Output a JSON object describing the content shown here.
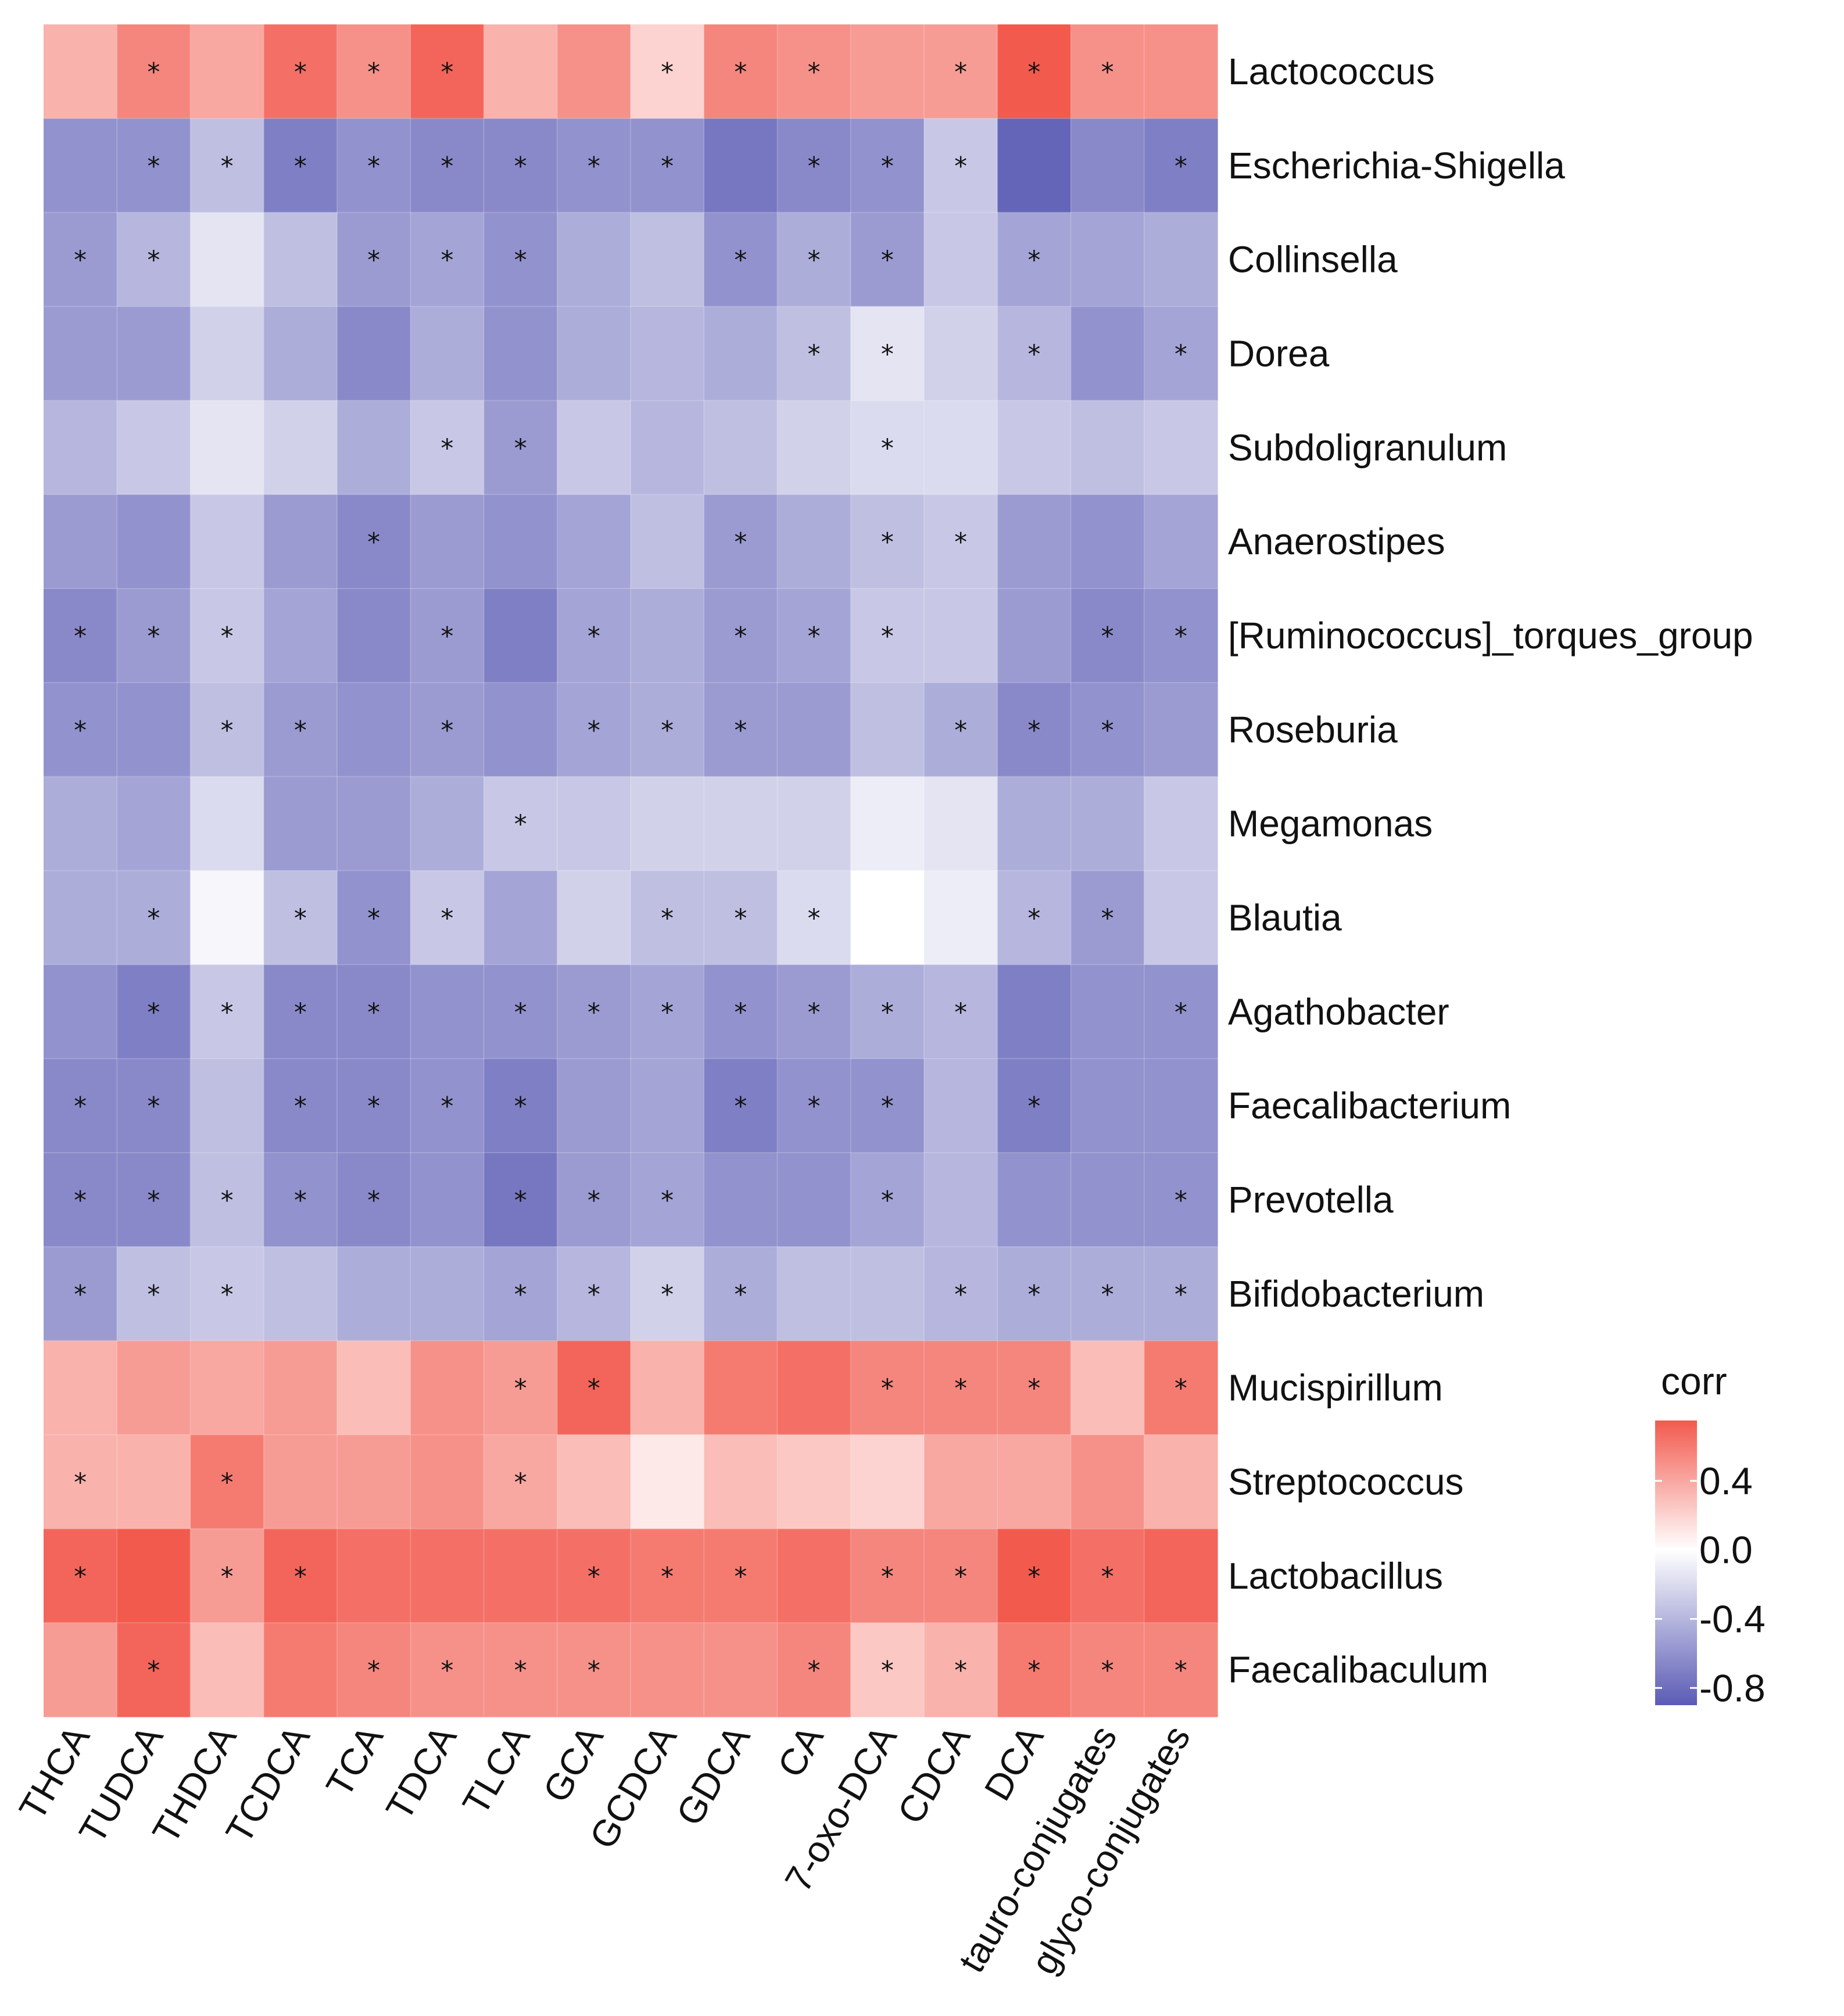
{
  "chart_data": {
    "type": "heatmap",
    "title": "",
    "xlabel": "",
    "ylabel": "",
    "columns": [
      "THCA",
      "TUDCA",
      "THDCA",
      "TCDCA",
      "TCA",
      "TDCA",
      "TLCA",
      "GCA",
      "GCDCA",
      "GDCA",
      "CA",
      "7-oxo-DCA",
      "CDCA",
      "DCA",
      "tauro-conjugates",
      "glyco-conjugates"
    ],
    "rows": [
      "Lactococcus",
      "Escherichia-Shigella",
      "Collinsella",
      "Dorea",
      "Subdoligranulum",
      "Anaerostipes",
      "[Ruminococcus]_torques_group",
      "Roseburia",
      "Megamonas",
      "Blautia",
      "Agathobacter",
      "Faecalibacterium",
      "Prevotella",
      "Bifidobacterium",
      "Mucispirillum",
      "Streptococcus",
      "Lactobacillus",
      "Faecalibaculum"
    ],
    "values": [
      [
        0.35,
        0.55,
        0.4,
        0.65,
        0.5,
        0.7,
        0.35,
        0.5,
        0.2,
        0.55,
        0.5,
        0.45,
        0.45,
        0.75,
        0.5,
        0.5
      ],
      [
        -0.6,
        -0.6,
        -0.35,
        -0.7,
        -0.6,
        -0.65,
        -0.65,
        -0.6,
        -0.6,
        -0.75,
        -0.65,
        -0.6,
        -0.3,
        -0.85,
        -0.65,
        -0.7
      ],
      [
        -0.55,
        -0.4,
        -0.15,
        -0.35,
        -0.55,
        -0.5,
        -0.6,
        -0.45,
        -0.35,
        -0.6,
        -0.45,
        -0.55,
        -0.3,
        -0.5,
        -0.5,
        -0.45
      ],
      [
        -0.55,
        -0.55,
        -0.25,
        -0.45,
        -0.65,
        -0.45,
        -0.6,
        -0.45,
        -0.4,
        -0.45,
        -0.35,
        -0.15,
        -0.25,
        -0.4,
        -0.6,
        -0.5
      ],
      [
        -0.4,
        -0.3,
        -0.15,
        -0.25,
        -0.45,
        -0.3,
        -0.55,
        -0.3,
        -0.4,
        -0.35,
        -0.25,
        -0.2,
        -0.2,
        -0.3,
        -0.35,
        -0.3
      ],
      [
        -0.55,
        -0.6,
        -0.3,
        -0.55,
        -0.65,
        -0.55,
        -0.6,
        -0.5,
        -0.35,
        -0.55,
        -0.45,
        -0.35,
        -0.3,
        -0.55,
        -0.6,
        -0.5
      ],
      [
        -0.65,
        -0.55,
        -0.3,
        -0.5,
        -0.65,
        -0.55,
        -0.7,
        -0.5,
        -0.45,
        -0.55,
        -0.5,
        -0.3,
        -0.3,
        -0.55,
        -0.65,
        -0.6
      ],
      [
        -0.6,
        -0.6,
        -0.35,
        -0.55,
        -0.6,
        -0.55,
        -0.6,
        -0.5,
        -0.45,
        -0.55,
        -0.55,
        -0.35,
        -0.45,
        -0.65,
        -0.6,
        -0.55
      ],
      [
        -0.45,
        -0.5,
        -0.2,
        -0.55,
        -0.55,
        -0.45,
        -0.3,
        -0.3,
        -0.25,
        -0.25,
        -0.25,
        -0.1,
        -0.15,
        -0.45,
        -0.45,
        -0.3
      ],
      [
        -0.45,
        -0.45,
        -0.05,
        -0.35,
        -0.6,
        -0.3,
        -0.5,
        -0.25,
        -0.35,
        -0.35,
        -0.2,
        0.0,
        -0.1,
        -0.4,
        -0.55,
        -0.3
      ],
      [
        -0.6,
        -0.7,
        -0.3,
        -0.65,
        -0.65,
        -0.6,
        -0.6,
        -0.55,
        -0.5,
        -0.6,
        -0.55,
        -0.45,
        -0.4,
        -0.7,
        -0.6,
        -0.6
      ],
      [
        -0.65,
        -0.65,
        -0.35,
        -0.65,
        -0.65,
        -0.6,
        -0.7,
        -0.55,
        -0.5,
        -0.7,
        -0.6,
        -0.6,
        -0.4,
        -0.7,
        -0.6,
        -0.6
      ],
      [
        -0.65,
        -0.65,
        -0.35,
        -0.6,
        -0.65,
        -0.6,
        -0.75,
        -0.55,
        -0.5,
        -0.6,
        -0.6,
        -0.5,
        -0.4,
        -0.6,
        -0.6,
        -0.6
      ],
      [
        -0.55,
        -0.35,
        -0.3,
        -0.35,
        -0.45,
        -0.45,
        -0.5,
        -0.4,
        -0.25,
        -0.45,
        -0.35,
        -0.35,
        -0.4,
        -0.45,
        -0.45,
        -0.45
      ],
      [
        0.35,
        0.45,
        0.4,
        0.45,
        0.3,
        0.5,
        0.45,
        0.7,
        0.35,
        0.6,
        0.65,
        0.55,
        0.55,
        0.55,
        0.3,
        0.6
      ],
      [
        0.35,
        0.35,
        0.6,
        0.45,
        0.45,
        0.5,
        0.4,
        0.3,
        0.1,
        0.3,
        0.25,
        0.2,
        0.4,
        0.4,
        0.5,
        0.35
      ],
      [
        0.7,
        0.85,
        0.45,
        0.7,
        0.65,
        0.65,
        0.65,
        0.65,
        0.6,
        0.6,
        0.65,
        0.55,
        0.55,
        0.75,
        0.65,
        0.7
      ],
      [
        0.45,
        0.7,
        0.3,
        0.6,
        0.55,
        0.5,
        0.5,
        0.5,
        0.5,
        0.5,
        0.55,
        0.25,
        0.35,
        0.6,
        0.55,
        0.55
      ]
    ],
    "significant": [
      [
        0,
        1,
        0,
        1,
        1,
        1,
        0,
        0,
        1,
        1,
        1,
        0,
        1,
        1,
        1,
        0
      ],
      [
        0,
        1,
        1,
        1,
        1,
        1,
        1,
        1,
        1,
        0,
        1,
        1,
        1,
        0,
        0,
        1
      ],
      [
        1,
        1,
        0,
        0,
        1,
        1,
        1,
        0,
        0,
        1,
        1,
        1,
        0,
        1,
        0,
        0
      ],
      [
        0,
        0,
        0,
        0,
        0,
        0,
        0,
        0,
        0,
        0,
        1,
        1,
        0,
        1,
        0,
        1
      ],
      [
        0,
        0,
        0,
        0,
        0,
        1,
        1,
        0,
        0,
        0,
        0,
        1,
        0,
        0,
        0,
        0
      ],
      [
        0,
        0,
        0,
        0,
        1,
        0,
        0,
        0,
        0,
        1,
        0,
        1,
        1,
        0,
        0,
        0
      ],
      [
        1,
        1,
        1,
        0,
        0,
        1,
        0,
        1,
        0,
        1,
        1,
        1,
        0,
        0,
        1,
        1
      ],
      [
        1,
        0,
        1,
        1,
        0,
        1,
        0,
        1,
        1,
        1,
        0,
        0,
        1,
        1,
        1,
        0
      ],
      [
        0,
        0,
        0,
        0,
        0,
        0,
        1,
        0,
        0,
        0,
        0,
        0,
        0,
        0,
        0,
        0
      ],
      [
        0,
        1,
        0,
        1,
        1,
        1,
        0,
        0,
        1,
        1,
        1,
        0,
        0,
        1,
        1,
        0
      ],
      [
        0,
        1,
        1,
        1,
        1,
        0,
        1,
        1,
        1,
        1,
        1,
        1,
        1,
        0,
        0,
        1
      ],
      [
        1,
        1,
        0,
        1,
        1,
        1,
        1,
        0,
        0,
        1,
        1,
        1,
        0,
        1,
        0,
        0
      ],
      [
        1,
        1,
        1,
        1,
        1,
        0,
        1,
        1,
        1,
        0,
        0,
        1,
        0,
        0,
        0,
        1
      ],
      [
        1,
        1,
        1,
        0,
        0,
        0,
        1,
        1,
        1,
        1,
        0,
        0,
        1,
        1,
        1,
        1
      ],
      [
        0,
        0,
        0,
        0,
        0,
        0,
        1,
        1,
        0,
        0,
        0,
        1,
        1,
        1,
        0,
        1
      ],
      [
        1,
        0,
        1,
        0,
        0,
        0,
        1,
        0,
        0,
        0,
        0,
        0,
        0,
        0,
        0,
        0
      ],
      [
        1,
        0,
        1,
        1,
        0,
        0,
        0,
        1,
        1,
        1,
        0,
        1,
        1,
        1,
        1,
        0
      ],
      [
        0,
        1,
        0,
        0,
        1,
        1,
        1,
        1,
        0,
        0,
        1,
        1,
        1,
        1,
        1,
        1
      ]
    ],
    "significance_marker": "*",
    "color_scale": {
      "low": "#5b5bb5",
      "mid": "#ffffff",
      "high": "#f25a4e",
      "range": [
        -0.9,
        0.75
      ]
    },
    "legend": {
      "title": "corr",
      "ticks": [
        0.4,
        0.0,
        -0.4,
        -0.8
      ],
      "tick_labels": [
        "0.4",
        "0.0",
        "-0.4",
        "-0.8"
      ],
      "placement": "right"
    }
  }
}
